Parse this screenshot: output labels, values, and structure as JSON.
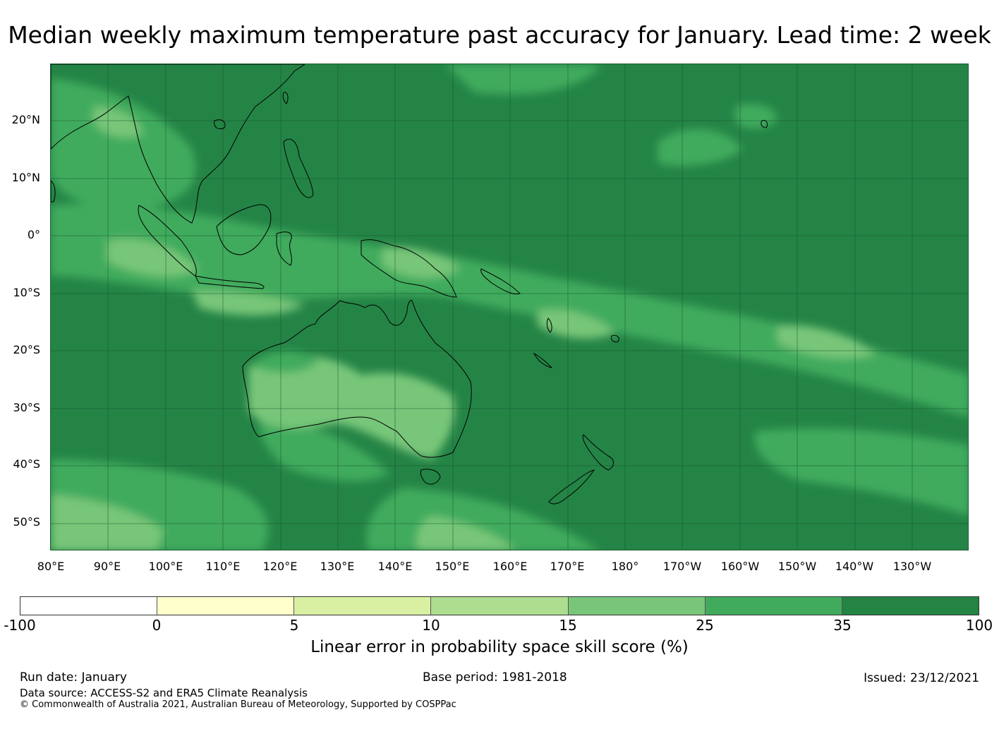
{
  "title": "Median weekly maximum temperature past accuracy for January. Lead time: 2 week",
  "map": {
    "latitude_labels": [
      "20°N",
      "10°N",
      "0°",
      "10°S",
      "20°S",
      "30°S",
      "40°S",
      "50°S"
    ],
    "longitude_labels": [
      "80°E",
      "90°E",
      "100°E",
      "110°E",
      "120°E",
      "130°E",
      "140°E",
      "150°E",
      "160°E",
      "170°E",
      "180°",
      "170°W",
      "160°W",
      "150°W",
      "140°W",
      "130°W"
    ],
    "background_color": "#248446"
  },
  "colorbar": {
    "label": "Linear error in probability space skill score (%)",
    "ticks": [
      "-100",
      "0",
      "5",
      "10",
      "15",
      "25",
      "35",
      "100"
    ],
    "colors": [
      "#ffffff",
      "#ffffcc",
      "#d9f0a3",
      "#addd8e",
      "#78c679",
      "#41ab5d",
      "#238443"
    ]
  },
  "footer": {
    "run_date": "Run date: January",
    "base_period": "Base period: 1981-2018",
    "issued": "Issued: 23/12/2021",
    "data_source": "Data source: ACCESS-S2 and ERA5 Climate Reanalysis",
    "copyright": "© Commonwealth of Australia 2021, Australian Bureau of Meteorology, Supported by COSPPac"
  }
}
